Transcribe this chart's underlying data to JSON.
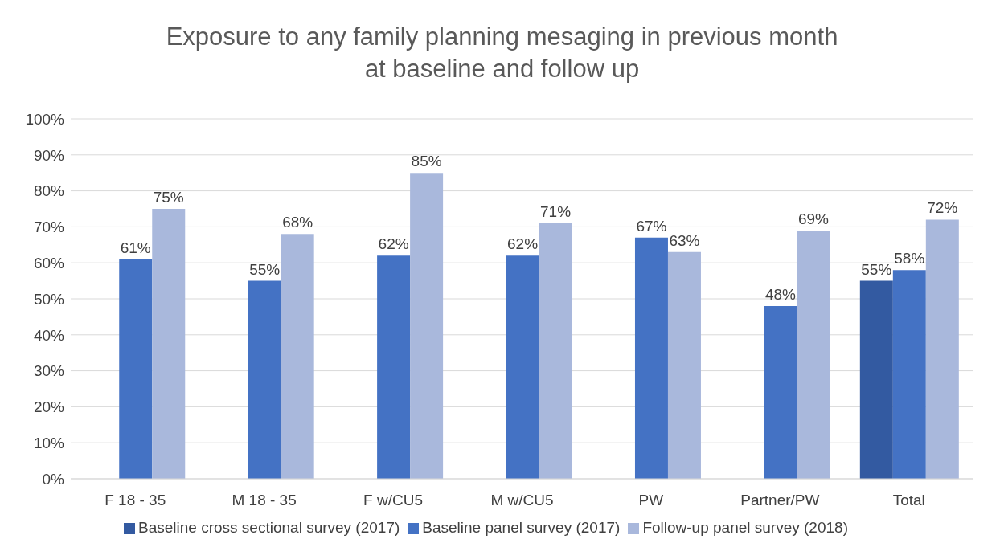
{
  "chart_data": {
    "type": "bar",
    "title": "Exposure to any family planning mesaging in previous month\nat baseline and follow up",
    "categories": [
      "F 18 - 35",
      "M 18 - 35",
      "F w/CU5",
      "M w/CU5",
      "PW",
      "Partner/PW",
      "Total"
    ],
    "series": [
      {
        "name": "Baseline cross sectional survey (2017)",
        "color": "#335aa1",
        "values": [
          null,
          null,
          null,
          null,
          null,
          null,
          55
        ],
        "value_labels": [
          null,
          null,
          null,
          null,
          null,
          null,
          "55%"
        ]
      },
      {
        "name": "Baseline panel survey (2017)",
        "color": "#4472c4",
        "values": [
          61,
          55,
          62,
          62,
          67,
          48,
          58
        ],
        "value_labels": [
          "61%",
          "55%",
          "62%",
          "62%",
          "67%",
          "48%",
          "58%"
        ]
      },
      {
        "name": "Follow-up panel survey (2018)",
        "color": "#a9b8dc",
        "values": [
          75,
          68,
          85,
          71,
          63,
          69,
          72
        ],
        "value_labels": [
          "75%",
          "68%",
          "85%",
          "71%",
          "63%",
          "69%",
          "72%"
        ]
      }
    ],
    "ylim": [
      0,
      100
    ],
    "yticks": [
      {
        "value": 0,
        "label": "0%"
      },
      {
        "value": 10,
        "label": "10%"
      },
      {
        "value": 20,
        "label": "20%"
      },
      {
        "value": 30,
        "label": "30%"
      },
      {
        "value": 40,
        "label": "40%"
      },
      {
        "value": 50,
        "label": "50%"
      },
      {
        "value": 60,
        "label": "60%"
      },
      {
        "value": 70,
        "label": "70%"
      },
      {
        "value": 80,
        "label": "80%"
      },
      {
        "value": 90,
        "label": "90%"
      },
      {
        "value": 100,
        "label": "100%"
      }
    ],
    "grid": "y",
    "legend": "bottom"
  }
}
